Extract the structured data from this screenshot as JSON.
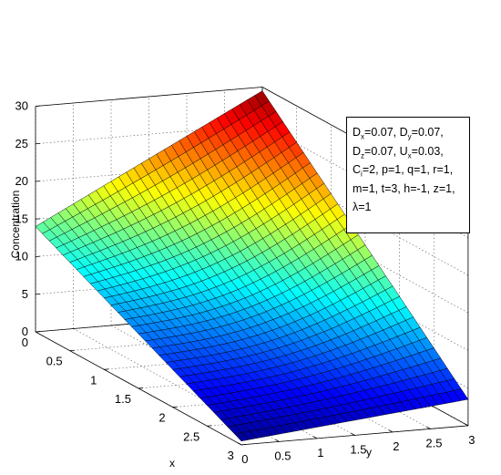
{
  "chart_data": {
    "type": "surface",
    "title": "",
    "xlabel": "x",
    "ylabel": "y",
    "zlabel": "Concentration",
    "xlim": [
      0,
      3
    ],
    "ylim": [
      0,
      3
    ],
    "zlim": [
      0,
      30
    ],
    "x_ticks": [
      "0",
      "0.5",
      "1",
      "1.5",
      "2",
      "2.5",
      "3"
    ],
    "y_ticks": [
      "0",
      "0.5",
      "1",
      "1.5",
      "2",
      "2.5",
      "3"
    ],
    "z_ticks": [
      "0",
      "5",
      "10",
      "15",
      "20",
      "25",
      "30"
    ],
    "grid": true,
    "colormap": "jet",
    "legend_placement": "top-right",
    "corner_values": {
      "x0_y0": 14,
      "x0_y3": 29.5,
      "x3_y0": 0.5,
      "x3_y3": 3.5
    },
    "annotation_lines": [
      {
        "segments": [
          [
            "D"
          ],
          [
            "x",
            "sub"
          ],
          [
            "=0.07, D"
          ],
          [
            "y",
            "sub"
          ],
          [
            "=0.07,"
          ]
        ]
      },
      {
        "segments": [
          [
            "D"
          ],
          [
            "z",
            "sub"
          ],
          [
            "=0.07, U"
          ],
          [
            "x",
            "sub"
          ],
          [
            "=0.03,"
          ]
        ]
      },
      {
        "segments": [
          [
            "C"
          ],
          [
            "i",
            "sub"
          ],
          [
            "=2, p=1, q=1, r=1,"
          ]
        ]
      },
      {
        "segments": [
          [
            "m=1, t=3, h=-1, z=1,"
          ]
        ]
      },
      {
        "segments": [
          [
            "λ=1"
          ]
        ]
      }
    ]
  }
}
